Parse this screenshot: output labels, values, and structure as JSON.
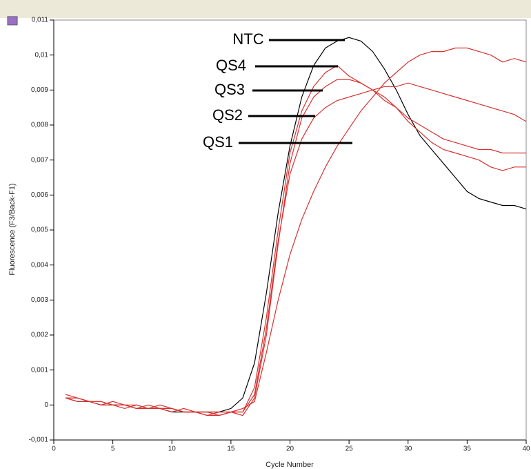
{
  "chart_data": {
    "type": "line",
    "xlabel": "Cycle Number",
    "ylabel": "Fluorescence (F3/Back-F1)",
    "x": [
      1,
      2,
      3,
      4,
      5,
      6,
      7,
      8,
      9,
      10,
      11,
      12,
      13,
      14,
      15,
      16,
      17,
      18,
      19,
      20,
      21,
      22,
      23,
      24,
      25,
      26,
      27,
      28,
      29,
      30,
      31,
      32,
      33,
      34,
      35,
      36,
      37,
      38,
      39,
      40
    ],
    "xlim": [
      0,
      40
    ],
    "xticks": [
      0,
      5,
      10,
      15,
      20,
      25,
      30,
      35,
      40
    ],
    "ylim": [
      -0.001,
      0.011
    ],
    "yticks": [
      {
        "value": -0.001,
        "label": "-0,001"
      },
      0,
      {
        "value": 0.001,
        "label": "0,001"
      },
      {
        "value": 0.002,
        "label": "0,002"
      },
      {
        "value": 0.003,
        "label": "0,003"
      },
      {
        "value": 0.004,
        "label": "0,004"
      },
      {
        "value": 0.005,
        "label": "0,005"
      },
      {
        "value": 0.006,
        "label": "0,006"
      },
      {
        "value": 0.007,
        "label": "0,007"
      },
      {
        "value": 0.008,
        "label": "0,008"
      },
      {
        "value": 0.009,
        "label": "0,009"
      },
      {
        "value": 0.01,
        "label": "0,01"
      },
      {
        "value": 0.011,
        "label": "0,011"
      }
    ],
    "series": [
      {
        "name": "NTC",
        "color": "#000000",
        "values": [
          0.0002,
          0.0001,
          0.0001,
          0.0,
          0.0,
          0.0,
          -0.0001,
          -0.0001,
          -0.0001,
          -0.0002,
          -0.0002,
          -0.0002,
          -0.0002,
          -0.0002,
          -0.0001,
          0.0002,
          0.0012,
          0.0032,
          0.0055,
          0.0074,
          0.0088,
          0.0097,
          0.0102,
          0.0104,
          0.0105,
          0.0104,
          0.0101,
          0.0096,
          0.009,
          0.0083,
          0.0077,
          0.0073,
          0.0069,
          0.0065,
          0.0061,
          0.0059,
          0.0058,
          0.0057,
          0.0057,
          0.0056
        ]
      },
      {
        "name": "QS4",
        "color": "#d9302f",
        "values": [
          0.0002,
          0.0002,
          0.0001,
          0.0,
          0.0,
          0.0,
          -0.0001,
          0.0,
          -0.0001,
          -0.0001,
          -0.0002,
          -0.0002,
          -0.0003,
          -0.0002,
          -0.0002,
          -0.0002,
          0.0005,
          0.0025,
          0.005,
          0.0072,
          0.0084,
          0.0091,
          0.0095,
          0.0097,
          0.0094,
          0.0092,
          0.009,
          0.0087,
          0.0085,
          0.0081,
          0.0078,
          0.0075,
          0.0073,
          0.0072,
          0.0071,
          0.007,
          0.0068,
          0.0067,
          0.0068,
          0.0068
        ]
      },
      {
        "name": "QS3",
        "color": "#d9302f",
        "values": [
          0.0002,
          0.0001,
          0.0001,
          0.0001,
          0.0,
          -0.0001,
          0.0,
          -0.0001,
          -0.0001,
          -0.0002,
          -0.0001,
          -0.0002,
          -0.0002,
          -0.0003,
          -0.0002,
          -0.0003,
          0.0002,
          0.002,
          0.0046,
          0.0069,
          0.0082,
          0.0088,
          0.0091,
          0.0093,
          0.0093,
          0.0092,
          0.009,
          0.0088,
          0.0085,
          0.0082,
          0.008,
          0.0078,
          0.0076,
          0.0075,
          0.0074,
          0.0073,
          0.0073,
          0.0072,
          0.0072,
          0.0072
        ]
      },
      {
        "name": "QS2",
        "color": "#d9302f",
        "values": [
          0.0003,
          0.0002,
          0.0001,
          0.0,
          0.0001,
          0.0,
          -0.0001,
          -0.0001,
          0.0,
          -0.0001,
          -0.0002,
          -0.0002,
          -0.0003,
          -0.0003,
          -0.0002,
          -0.0002,
          0.0003,
          0.0022,
          0.0047,
          0.0066,
          0.0076,
          0.0082,
          0.0085,
          0.0087,
          0.0088,
          0.0089,
          0.009,
          0.0091,
          0.0091,
          0.0092,
          0.0091,
          0.009,
          0.0089,
          0.0088,
          0.0087,
          0.0086,
          0.0085,
          0.0084,
          0.0083,
          0.0081
        ]
      },
      {
        "name": "QS1",
        "color": "#d9302f",
        "values": [
          0.0002,
          0.0002,
          0.0001,
          0.0001,
          0.0,
          0.0,
          0.0,
          -0.0001,
          -0.0001,
          -0.0001,
          -0.0002,
          -0.0002,
          -0.0002,
          -0.0002,
          -0.0002,
          -0.0001,
          0.0001,
          0.0015,
          0.003,
          0.0043,
          0.0053,
          0.0061,
          0.0068,
          0.0074,
          0.0079,
          0.0084,
          0.0088,
          0.0092,
          0.0095,
          0.0098,
          0.01,
          0.0101,
          0.0101,
          0.0102,
          0.0102,
          0.0101,
          0.01,
          0.0098,
          0.0099,
          0.0098
        ]
      }
    ]
  }
}
